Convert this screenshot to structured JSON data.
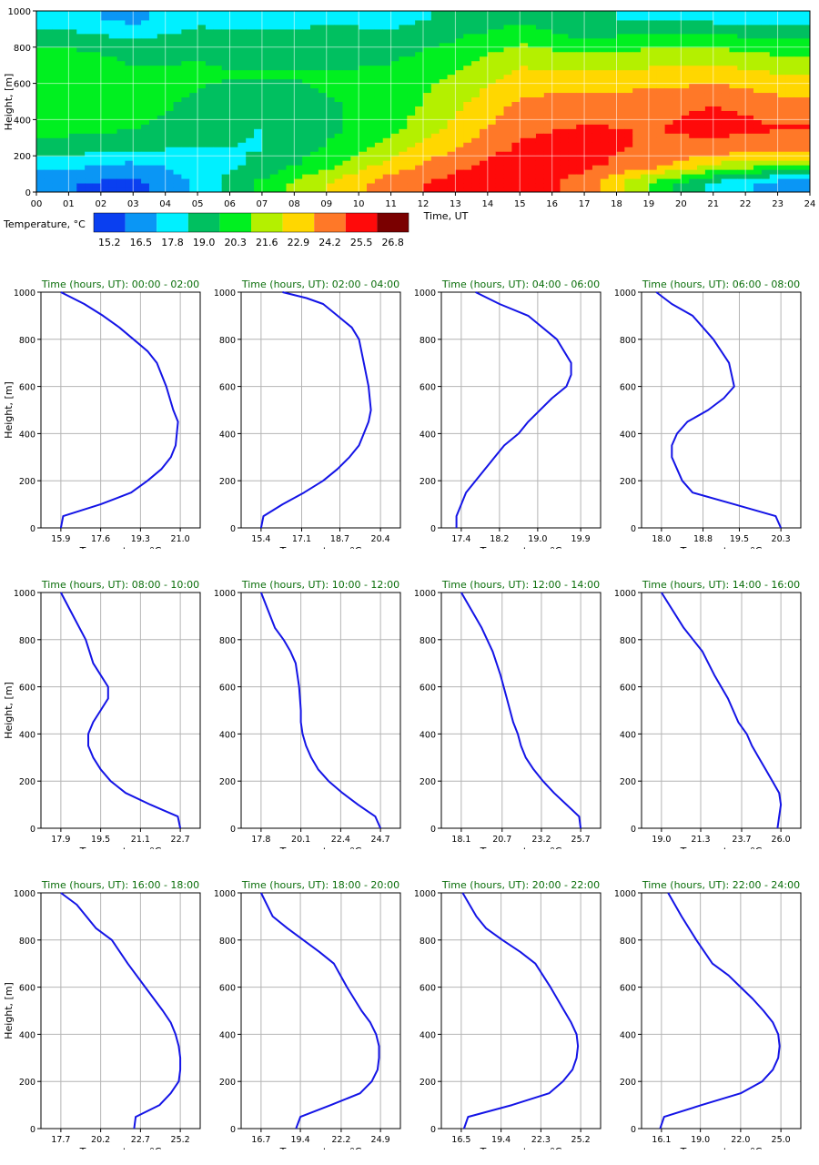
{
  "chart_data": [
    {
      "type": "heatmap",
      "xlabel": "Time, UT",
      "ylabel": "Height, [m]",
      "xlim": [
        0,
        24
      ],
      "ylim": [
        0,
        1000
      ],
      "x_ticks": [
        "00",
        "01",
        "02",
        "03",
        "04",
        "05",
        "06",
        "07",
        "08",
        "09",
        "10",
        "11",
        "12",
        "13",
        "14",
        "15",
        "16",
        "17",
        "18",
        "19",
        "20",
        "21",
        "22",
        "23",
        "24"
      ],
      "y_ticks": [
        "0",
        "200",
        "400",
        "600",
        "800",
        "1000"
      ],
      "grid": true,
      "colorbar": {
        "label": "Temperature, °C",
        "levels": [
          "15.2",
          "16.5",
          "17.8",
          "19.0",
          "20.3",
          "21.6",
          "22.9",
          "24.2",
          "25.5",
          "26.8"
        ],
        "colors": [
          "#0a3ff0",
          "#0a96f5",
          "#00f0ff",
          "#00c060",
          "#00f020",
          "#b4f000",
          "#ffd700",
          "#ff7828",
          "#ff0a0a",
          "#7a0000"
        ]
      },
      "values_at_hours_label": "approximate layer temperatures (°C) at heights 50,150,...,950 m for each 2-hour block",
      "blocks": [
        {
          "t": [
            0,
            2
          ],
          "temps": [
            15.9,
            17.5,
            19.1,
            20.0,
            20.6,
            20.9,
            20.7,
            20.2,
            19.0,
            17.4
          ]
        },
        {
          "t": [
            2,
            4
          ],
          "temps": [
            15.4,
            16.9,
            18.6,
            19.7,
            20.2,
            20.2,
            19.9,
            19.4,
            18.2,
            16.9
          ]
        },
        {
          "t": [
            4,
            6
          ],
          "temps": [
            17.4,
            17.7,
            18.4,
            18.8,
            19.2,
            19.6,
            19.8,
            19.6,
            19.0,
            18.0
          ]
        },
        {
          "t": [
            6,
            8
          ],
          "temps": [
            20.0,
            18.6,
            18.3,
            18.3,
            18.8,
            19.3,
            19.7,
            19.3,
            18.6,
            18.0
          ]
        },
        {
          "t": [
            8,
            10
          ],
          "temps": [
            22.3,
            20.6,
            19.7,
            19.3,
            19.4,
            19.7,
            19.7,
            19.4,
            18.9,
            18.1
          ]
        },
        {
          "t": [
            10,
            12
          ],
          "temps": [
            24.3,
            22.8,
            21.5,
            20.6,
            20.2,
            20.1,
            19.9,
            19.4,
            18.8,
            18.0
          ]
        },
        {
          "t": [
            12,
            14
          ],
          "temps": [
            25.4,
            24.5,
            23.5,
            22.6,
            22.1,
            21.6,
            21.1,
            20.4,
            19.6,
            18.6
          ]
        },
        {
          "t": [
            14,
            16
          ],
          "temps": [
            25.8,
            25.8,
            25.0,
            24.6,
            24.0,
            23.4,
            22.6,
            21.7,
            20.6,
            19.4
          ]
        },
        {
          "t": [
            16,
            18
          ],
          "temps": [
            24.2,
            25.2,
            25.2,
            25.0,
            24.3,
            23.6,
            22.6,
            21.3,
            19.6,
            18.4
          ]
        },
        {
          "t": [
            18,
            20
          ],
          "temps": [
            20.8,
            24.1,
            24.7,
            24.8,
            24.5,
            23.7,
            22.7,
            21.5,
            20.1,
            18.3
          ]
        },
        {
          "t": [
            20,
            22
          ],
          "temps": [
            18.1,
            22.1,
            24.6,
            25.1,
            25.0,
            24.1,
            23.0,
            21.7,
            20.1,
            18.1
          ]
        },
        {
          "t": [
            22,
            24
          ],
          "temps": [
            16.5,
            21.1,
            24.3,
            24.9,
            24.6,
            23.4,
            22.3,
            21.1,
            19.6,
            17.7
          ]
        }
      ]
    },
    {
      "type": "line",
      "title": "Time (hours, UT): 00:00 - 02:00",
      "xlabel": "Temperature, °C",
      "ylabel": "Height, [m]",
      "x_ticks": [
        "15.9",
        "17.6",
        "19.3",
        "21.0"
      ],
      "ylim": [
        0,
        1000
      ],
      "y_ticks": [
        "0",
        "200",
        "400",
        "600",
        "800",
        "1000"
      ],
      "x": [
        15.9,
        16.0,
        17.6,
        18.9,
        19.6,
        20.2,
        20.6,
        20.8,
        20.9,
        20.7,
        20.4,
        20.0,
        19.6,
        19.0,
        18.4,
        17.7,
        16.9,
        15.9
      ],
      "y": [
        0,
        50,
        100,
        150,
        200,
        250,
        300,
        350,
        450,
        500,
        600,
        700,
        750,
        800,
        850,
        900,
        950,
        1000
      ]
    },
    {
      "type": "line",
      "title": "Time (hours, UT): 02:00 - 04:00",
      "xlabel": "Temperature, °C",
      "ylabel": "Height, [m]",
      "x_ticks": [
        "15.4",
        "17.1",
        "18.7",
        "20.4"
      ],
      "ylim": [
        0,
        1000
      ],
      "y_ticks": [
        "0",
        "200",
        "400",
        "600",
        "800",
        "1000"
      ],
      "x": [
        15.4,
        15.5,
        16.3,
        17.2,
        18.0,
        18.6,
        19.1,
        19.5,
        19.7,
        19.9,
        20.0,
        19.9,
        19.7,
        19.5,
        19.2,
        18.6,
        18.0,
        17.3,
        16.3
      ],
      "y": [
        0,
        50,
        100,
        150,
        200,
        250,
        300,
        350,
        400,
        450,
        500,
        600,
        700,
        800,
        850,
        900,
        950,
        975,
        1000
      ]
    },
    {
      "type": "line",
      "title": "Time (hours, UT): 04:00 - 06:00",
      "xlabel": "Temperature, °C",
      "ylabel": "Height, [m]",
      "x_ticks": [
        "17.4",
        "18.2",
        "19.0",
        "19.9"
      ],
      "ylim": [
        0,
        1000
      ],
      "y_ticks": [
        "0",
        "200",
        "400",
        "600",
        "800",
        "1000"
      ],
      "x": [
        17.3,
        17.3,
        17.4,
        17.5,
        17.7,
        17.9,
        18.1,
        18.3,
        18.6,
        18.8,
        19.3,
        19.6,
        19.7,
        19.7,
        19.4,
        18.8,
        18.2,
        17.7
      ],
      "y": [
        0,
        50,
        100,
        150,
        200,
        250,
        300,
        350,
        400,
        450,
        550,
        600,
        650,
        700,
        800,
        900,
        950,
        1000
      ]
    },
    {
      "type": "line",
      "title": "Time (hours, UT): 06:00 - 08:00",
      "xlabel": "Temperature, °C",
      "ylabel": "Height, [m]",
      "x_ticks": [
        "18.0",
        "18.8",
        "19.5",
        "20.3"
      ],
      "ylim": [
        0,
        1000
      ],
      "y_ticks": [
        "0",
        "200",
        "400",
        "600",
        "800",
        "1000"
      ],
      "x": [
        20.3,
        20.2,
        19.4,
        18.6,
        18.4,
        18.3,
        18.2,
        18.2,
        18.3,
        18.5,
        18.9,
        19.2,
        19.4,
        19.3,
        19.0,
        18.6,
        18.2,
        17.9
      ],
      "y": [
        0,
        50,
        100,
        150,
        200,
        250,
        300,
        350,
        400,
        450,
        500,
        550,
        600,
        700,
        800,
        900,
        950,
        1000
      ]
    },
    {
      "type": "line",
      "title": "Time (hours, UT): 08:00 - 10:00",
      "xlabel": "Temperature, °C",
      "ylabel": "Height, [m]",
      "x_ticks": [
        "17.9",
        "19.5",
        "21.1",
        "22.7"
      ],
      "ylim": [
        0,
        1000
      ],
      "y_ticks": [
        "0",
        "200",
        "400",
        "600",
        "800",
        "1000"
      ],
      "x": [
        22.7,
        22.6,
        21.5,
        20.5,
        19.9,
        19.5,
        19.2,
        19.0,
        19.0,
        19.2,
        19.5,
        19.8,
        19.8,
        19.5,
        19.2,
        18.9,
        18.4,
        17.9
      ],
      "y": [
        0,
        50,
        100,
        150,
        200,
        250,
        300,
        350,
        400,
        450,
        500,
        550,
        600,
        650,
        700,
        800,
        900,
        1000
      ]
    },
    {
      "type": "line",
      "title": "Time (hours, UT): 10:00 - 12:00",
      "xlabel": "Temperature, °C",
      "ylabel": "Height, [m]",
      "x_ticks": [
        "17.8",
        "20.1",
        "22.4",
        "24.7"
      ],
      "ylim": [
        0,
        1000
      ],
      "y_ticks": [
        "0",
        "200",
        "400",
        "600",
        "800",
        "1000"
      ],
      "x": [
        24.7,
        24.4,
        23.4,
        22.5,
        21.7,
        21.1,
        20.7,
        20.4,
        20.2,
        20.1,
        20.1,
        20.0,
        19.8,
        19.5,
        19.1,
        18.6,
        17.8
      ],
      "y": [
        0,
        50,
        100,
        150,
        200,
        250,
        300,
        350,
        400,
        450,
        500,
        600,
        700,
        750,
        800,
        850,
        1000
      ]
    },
    {
      "type": "line",
      "title": "Time (hours, UT): 12:00 - 14:00",
      "xlabel": "Temperature, °C",
      "ylabel": "Height, [m]",
      "x_ticks": [
        "18.1",
        "20.7",
        "23.2",
        "25.7"
      ],
      "ylim": [
        0,
        1000
      ],
      "y_ticks": [
        "0",
        "200",
        "400",
        "600",
        "800",
        "1000"
      ],
      "x": [
        25.7,
        25.6,
        24.8,
        24.0,
        23.3,
        22.7,
        22.2,
        21.9,
        21.7,
        21.4,
        21.0,
        20.6,
        20.1,
        19.4,
        18.1
      ],
      "y": [
        0,
        50,
        100,
        150,
        200,
        250,
        300,
        350,
        400,
        450,
        550,
        650,
        750,
        850,
        1000
      ]
    },
    {
      "type": "line",
      "title": "Time (hours, UT): 14:00 - 16:00",
      "xlabel": "Temperature, °C",
      "ylabel": "Height, [m]",
      "x_ticks": [
        "19.0",
        "21.3",
        "23.7",
        "26.0"
      ],
      "ylim": [
        0,
        1000
      ],
      "y_ticks": [
        "0",
        "200",
        "400",
        "600",
        "800",
        "1000"
      ],
      "x": [
        25.8,
        25.9,
        26.0,
        25.9,
        25.5,
        25.1,
        24.7,
        24.3,
        24.0,
        23.5,
        22.9,
        22.1,
        21.4,
        20.3,
        19.0
      ],
      "y": [
        0,
        50,
        100,
        150,
        200,
        250,
        300,
        350,
        400,
        450,
        550,
        650,
        750,
        850,
        1000
      ]
    },
    {
      "type": "line",
      "title": "Time (hours, UT): 16:00 - 18:00",
      "xlabel": "Temperature, °C",
      "ylabel": "Height, [m]",
      "x_ticks": [
        "17.7",
        "20.2",
        "22.7",
        "25.2"
      ],
      "ylim": [
        0,
        1000
      ],
      "y_ticks": [
        "0",
        "200",
        "400",
        "600",
        "800",
        "1000"
      ],
      "x": [
        22.3,
        22.4,
        23.9,
        24.6,
        25.1,
        25.2,
        25.2,
        25.1,
        24.9,
        24.6,
        24.1,
        23.0,
        21.9,
        20.9,
        19.9,
        18.7,
        17.7
      ],
      "y": [
        0,
        50,
        100,
        150,
        200,
        250,
        300,
        350,
        400,
        450,
        500,
        600,
        700,
        800,
        850,
        950,
        1000
      ]
    },
    {
      "type": "line",
      "title": "Time (hours, UT): 18:00 - 20:00",
      "xlabel": "Temperature, °C",
      "ylabel": "Height, [m]",
      "x_ticks": [
        "16.7",
        "19.4",
        "22.2",
        "24.9"
      ],
      "ylim": [
        0,
        1000
      ],
      "y_ticks": [
        "0",
        "200",
        "400",
        "600",
        "800",
        "1000"
      ],
      "x": [
        19.1,
        19.4,
        21.5,
        23.5,
        24.3,
        24.7,
        24.8,
        24.8,
        24.6,
        24.2,
        23.6,
        22.6,
        21.7,
        20.7,
        19.6,
        18.5,
        17.5,
        16.7
      ],
      "y": [
        0,
        50,
        100,
        150,
        200,
        250,
        300,
        350,
        400,
        450,
        500,
        600,
        700,
        750,
        800,
        850,
        900,
        1000
      ]
    },
    {
      "type": "line",
      "title": "Time (hours, UT): 20:00 - 22:00",
      "xlabel": "Temperature, °C",
      "ylabel": "Height, [m]",
      "x_ticks": [
        "16.5",
        "19.4",
        "22.3",
        "25.2"
      ],
      "ylim": [
        0,
        1000
      ],
      "y_ticks": [
        "0",
        "200",
        "400",
        "600",
        "800",
        "1000"
      ],
      "x": [
        16.7,
        17.0,
        20.2,
        22.9,
        23.9,
        24.6,
        24.9,
        25.0,
        24.9,
        24.5,
        24.0,
        23.0,
        21.9,
        20.8,
        19.5,
        18.3,
        17.6,
        16.6
      ],
      "y": [
        0,
        50,
        100,
        150,
        200,
        250,
        300,
        350,
        400,
        450,
        500,
        600,
        700,
        750,
        800,
        850,
        900,
        1000
      ]
    },
    {
      "type": "line",
      "title": "Time (hours, UT): 22:00 - 24:00",
      "xlabel": "Temperature, °C",
      "ylabel": "Height, [m]",
      "x_ticks": [
        "16.1",
        "19.0",
        "22.0",
        "25.0"
      ],
      "ylim": [
        0,
        1000
      ],
      "y_ticks": [
        "0",
        "200",
        "400",
        "600",
        "800",
        "1000"
      ],
      "x": [
        16.0,
        16.3,
        19.1,
        22.0,
        23.6,
        24.4,
        24.8,
        24.9,
        24.8,
        24.4,
        23.7,
        22.9,
        22.0,
        21.1,
        19.9,
        18.7,
        17.6,
        16.6
      ],
      "y": [
        0,
        50,
        100,
        150,
        200,
        250,
        300,
        350,
        400,
        450,
        500,
        550,
        600,
        650,
        700,
        800,
        900,
        1000
      ]
    }
  ]
}
